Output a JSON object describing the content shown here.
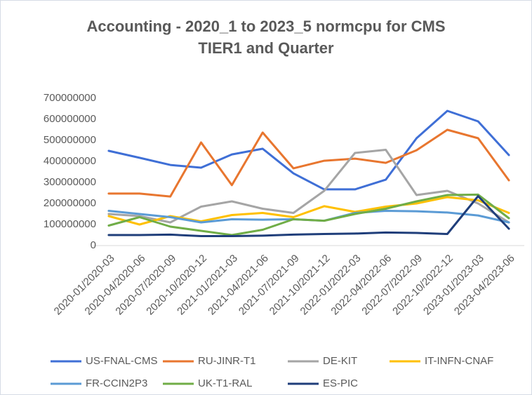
{
  "chart_data": {
    "type": "line",
    "title": "Accounting - 2020_1 to 2023_5 normcpu for CMS TIER1 and Quarter",
    "categories": [
      "2020-01/2020-03",
      "2020-04/2020-06",
      "2020-07/2020-09",
      "2020-10/2020-12",
      "2021-01/2021-03",
      "2021-04/2021-06",
      "2021-07/2021-09",
      "2021-10/2021-12",
      "2022-01/2022-03",
      "2022-04/2022-06",
      "2022-07/2022-09",
      "2022-10/2022-12",
      "2023-01/2023-03",
      "2023-04/2023-06"
    ],
    "series": [
      {
        "name": "US-FNAL-CMS",
        "color": "#3f6fd6",
        "values": [
          450000000,
          417000000,
          383000000,
          370000000,
          433000000,
          460000000,
          343000000,
          267000000,
          267000000,
          313000000,
          510000000,
          640000000,
          590000000,
          430000000
        ]
      },
      {
        "name": "RU-JINR-T1",
        "color": "#e8762f",
        "values": [
          247000000,
          247000000,
          233000000,
          490000000,
          287000000,
          537000000,
          367000000,
          403000000,
          413000000,
          393000000,
          453000000,
          550000000,
          510000000,
          310000000
        ]
      },
      {
        "name": "DE-KIT",
        "color": "#a5a5a5",
        "values": [
          150000000,
          140000000,
          110000000,
          185000000,
          210000000,
          175000000,
          155000000,
          260000000,
          440000000,
          455000000,
          240000000,
          260000000,
          200000000,
          110000000
        ]
      },
      {
        "name": "IT-INFN-CNAF",
        "color": "#ffc000",
        "values": [
          140000000,
          100000000,
          140000000,
          115000000,
          145000000,
          155000000,
          135000000,
          187000000,
          160000000,
          185000000,
          200000000,
          230000000,
          215000000,
          155000000
        ]
      },
      {
        "name": "FR-CCIN2P3",
        "color": "#5b9bd5",
        "values": [
          165000000,
          150000000,
          135000000,
          110000000,
          125000000,
          123000000,
          125000000,
          118000000,
          155000000,
          165000000,
          163000000,
          157000000,
          143000000,
          110000000
        ]
      },
      {
        "name": "UK-T1-RAL",
        "color": "#70ad47",
        "values": [
          95000000,
          135000000,
          90000000,
          70000000,
          50000000,
          75000000,
          125000000,
          118000000,
          150000000,
          175000000,
          210000000,
          240000000,
          242000000,
          130000000
        ]
      },
      {
        "name": "ES-PIC",
        "color": "#1f3e7a",
        "values": [
          50000000,
          50000000,
          52000000,
          45000000,
          45000000,
          47000000,
          52000000,
          55000000,
          57000000,
          62000000,
          60000000,
          55000000,
          235000000,
          80000000
        ]
      }
    ],
    "ylim": [
      0,
      700000000
    ],
    "yticks": [
      0,
      100000000,
      200000000,
      300000000,
      400000000,
      500000000,
      600000000,
      700000000
    ],
    "grid": false,
    "legend": "bottom"
  }
}
